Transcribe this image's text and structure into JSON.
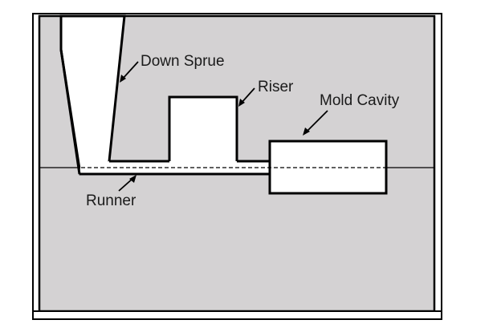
{
  "colors": {
    "mold_fill": "#d4d2d3",
    "outline": "#000000",
    "cavity_fill": "#ffffff",
    "frame": "#ffffff"
  },
  "labels": {
    "down_sprue": "Down Sprue",
    "riser": "Riser",
    "mold_cavity": "Mold Cavity",
    "runner": "Runner"
  }
}
